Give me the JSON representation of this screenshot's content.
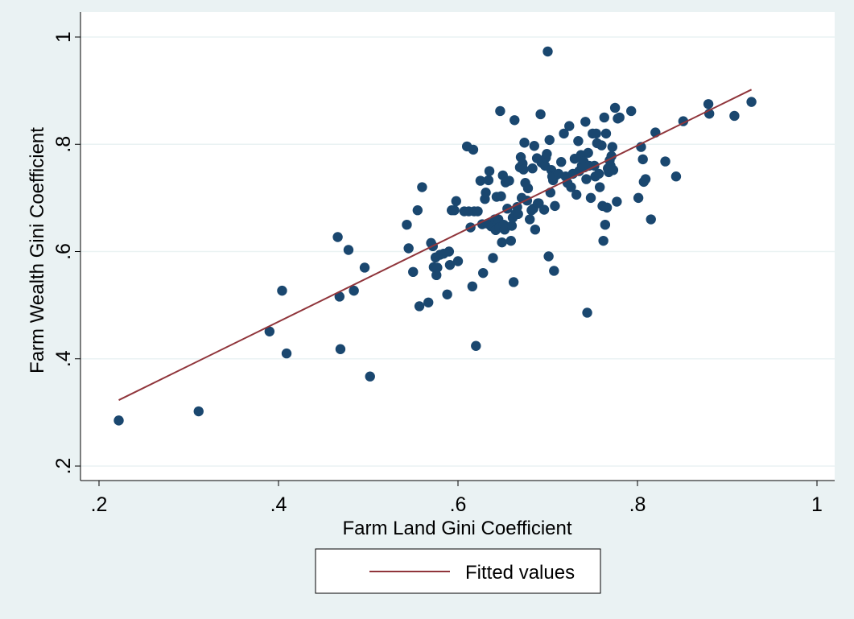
{
  "chart_data": {
    "type": "scatter",
    "xlabel": "Farm Land Gini Coefficient",
    "ylabel": "Farm Wealth Gini Coefficient",
    "xlim": [
      0.2,
      1.0
    ],
    "ylim": [
      0.2,
      1.0
    ],
    "x_ticks": [
      0.2,
      0.4,
      0.6,
      0.8,
      1.0
    ],
    "x_tick_labels": [
      ".2",
      ".4",
      ".6",
      ".8",
      "1"
    ],
    "y_ticks": [
      0.2,
      0.4,
      0.6,
      0.8,
      1.0
    ],
    "y_tick_labels": [
      ".2",
      ".4",
      ".6",
      ".8",
      "1"
    ],
    "grid": "horizontal",
    "legend_position": "bottom",
    "colors": {
      "background": "#eaf2f3",
      "plot_background": "#ffffff",
      "gridline": "#eaf2f3",
      "points": "#1a476f",
      "fitted_line": "#90353b"
    },
    "series": [
      {
        "kind": "scatter",
        "points": [
          [
            0.222,
            0.285
          ],
          [
            0.311,
            0.302
          ],
          [
            0.39,
            0.451
          ],
          [
            0.404,
            0.527
          ],
          [
            0.409,
            0.41
          ],
          [
            0.466,
            0.627
          ],
          [
            0.468,
            0.516
          ],
          [
            0.469,
            0.418
          ],
          [
            0.478,
            0.603
          ],
          [
            0.484,
            0.527
          ],
          [
            0.496,
            0.57
          ],
          [
            0.502,
            0.367
          ],
          [
            0.543,
            0.65
          ],
          [
            0.545,
            0.606
          ],
          [
            0.55,
            0.562
          ],
          [
            0.555,
            0.677
          ],
          [
            0.557,
            0.498
          ],
          [
            0.56,
            0.72
          ],
          [
            0.567,
            0.505
          ],
          [
            0.57,
            0.616
          ],
          [
            0.572,
            0.61
          ],
          [
            0.573,
            0.571
          ],
          [
            0.575,
            0.589
          ],
          [
            0.576,
            0.556
          ],
          [
            0.577,
            0.57
          ],
          [
            0.58,
            0.594
          ],
          [
            0.584,
            0.596
          ],
          [
            0.588,
            0.52
          ],
          [
            0.59,
            0.6
          ],
          [
            0.591,
            0.575
          ],
          [
            0.593,
            0.677
          ],
          [
            0.596,
            0.677
          ],
          [
            0.598,
            0.694
          ],
          [
            0.6,
            0.582
          ],
          [
            0.607,
            0.675
          ],
          [
            0.61,
            0.796
          ],
          [
            0.612,
            0.675
          ],
          [
            0.614,
            0.645
          ],
          [
            0.616,
            0.535
          ],
          [
            0.617,
            0.79
          ],
          [
            0.618,
            0.675
          ],
          [
            0.62,
            0.424
          ],
          [
            0.622,
            0.675
          ],
          [
            0.625,
            0.732
          ],
          [
            0.627,
            0.651
          ],
          [
            0.628,
            0.56
          ],
          [
            0.63,
            0.698
          ],
          [
            0.631,
            0.71
          ],
          [
            0.633,
            0.652
          ],
          [
            0.634,
            0.733
          ],
          [
            0.635,
            0.75
          ],
          [
            0.637,
            0.647
          ],
          [
            0.639,
            0.588
          ],
          [
            0.641,
            0.66
          ],
          [
            0.642,
            0.64
          ],
          [
            0.643,
            0.702
          ],
          [
            0.645,
            0.66
          ],
          [
            0.646,
            0.645
          ],
          [
            0.647,
            0.862
          ],
          [
            0.648,
            0.703
          ],
          [
            0.649,
            0.617
          ],
          [
            0.65,
            0.742
          ],
          [
            0.651,
            0.65
          ],
          [
            0.652,
            0.641
          ],
          [
            0.653,
            0.729
          ],
          [
            0.655,
            0.68
          ],
          [
            0.657,
            0.732
          ],
          [
            0.659,
            0.62
          ],
          [
            0.66,
            0.648
          ],
          [
            0.661,
            0.663
          ],
          [
            0.662,
            0.543
          ],
          [
            0.663,
            0.845
          ],
          [
            0.664,
            0.67
          ],
          [
            0.666,
            0.683
          ],
          [
            0.667,
            0.67
          ],
          [
            0.669,
            0.757
          ],
          [
            0.67,
            0.776
          ],
          [
            0.671,
            0.7
          ],
          [
            0.672,
            0.764
          ],
          [
            0.673,
            0.753
          ],
          [
            0.674,
            0.803
          ],
          [
            0.675,
            0.728
          ],
          [
            0.677,
            0.695
          ],
          [
            0.678,
            0.718
          ],
          [
            0.68,
            0.66
          ],
          [
            0.682,
            0.677
          ],
          [
            0.683,
            0.755
          ],
          [
            0.684,
            0.68
          ],
          [
            0.685,
            0.797
          ],
          [
            0.686,
            0.641
          ],
          [
            0.688,
            0.774
          ],
          [
            0.689,
            0.69
          ],
          [
            0.69,
            0.69
          ],
          [
            0.692,
            0.856
          ],
          [
            0.693,
            0.766
          ],
          [
            0.695,
            0.764
          ],
          [
            0.696,
            0.678
          ],
          [
            0.697,
            0.76
          ],
          [
            0.698,
            0.775
          ],
          [
            0.699,
            0.782
          ],
          [
            0.7,
            0.973
          ],
          [
            0.701,
            0.591
          ],
          [
            0.702,
            0.808
          ],
          [
            0.703,
            0.71
          ],
          [
            0.704,
            0.752
          ],
          [
            0.705,
            0.74
          ],
          [
            0.706,
            0.733
          ],
          [
            0.707,
            0.564
          ],
          [
            0.708,
            0.685
          ],
          [
            0.709,
            0.742
          ],
          [
            0.712,
            0.745
          ],
          [
            0.715,
            0.767
          ],
          [
            0.718,
            0.82
          ],
          [
            0.72,
            0.74
          ],
          [
            0.722,
            0.728
          ],
          [
            0.724,
            0.834
          ],
          [
            0.726,
            0.72
          ],
          [
            0.728,
            0.745
          ],
          [
            0.73,
            0.773
          ],
          [
            0.732,
            0.706
          ],
          [
            0.734,
            0.806
          ],
          [
            0.735,
            0.75
          ],
          [
            0.737,
            0.78
          ],
          [
            0.738,
            0.76
          ],
          [
            0.74,
            0.768
          ],
          [
            0.741,
            0.757
          ],
          [
            0.742,
            0.842
          ],
          [
            0.743,
            0.735
          ],
          [
            0.744,
            0.486
          ],
          [
            0.745,
            0.784
          ],
          [
            0.746,
            0.76
          ],
          [
            0.748,
            0.7
          ],
          [
            0.75,
            0.82
          ],
          [
            0.752,
            0.76
          ],
          [
            0.753,
            0.74
          ],
          [
            0.754,
            0.82
          ],
          [
            0.755,
            0.802
          ],
          [
            0.757,
            0.745
          ],
          [
            0.758,
            0.72
          ],
          [
            0.76,
            0.798
          ],
          [
            0.761,
            0.685
          ],
          [
            0.762,
            0.62
          ],
          [
            0.763,
            0.85
          ],
          [
            0.764,
            0.65
          ],
          [
            0.765,
            0.82
          ],
          [
            0.766,
            0.682
          ],
          [
            0.767,
            0.755
          ],
          [
            0.768,
            0.748
          ],
          [
            0.769,
            0.77
          ],
          [
            0.77,
            0.76
          ],
          [
            0.771,
            0.778
          ],
          [
            0.772,
            0.795
          ],
          [
            0.773,
            0.752
          ],
          [
            0.775,
            0.868
          ],
          [
            0.777,
            0.693
          ],
          [
            0.778,
            0.848
          ],
          [
            0.78,
            0.85
          ],
          [
            0.793,
            0.862
          ],
          [
            0.801,
            0.7
          ],
          [
            0.804,
            0.795
          ],
          [
            0.806,
            0.772
          ],
          [
            0.807,
            0.73
          ],
          [
            0.809,
            0.735
          ],
          [
            0.815,
            0.66
          ],
          [
            0.82,
            0.822
          ],
          [
            0.831,
            0.768
          ],
          [
            0.843,
            0.74
          ],
          [
            0.851,
            0.843
          ],
          [
            0.879,
            0.875
          ],
          [
            0.88,
            0.857
          ],
          [
            0.908,
            0.853
          ],
          [
            0.927,
            0.879
          ]
        ]
      },
      {
        "kind": "line",
        "name": "Fitted values",
        "points": [
          [
            0.222,
            0.323
          ],
          [
            0.927,
            0.902
          ]
        ]
      }
    ]
  }
}
